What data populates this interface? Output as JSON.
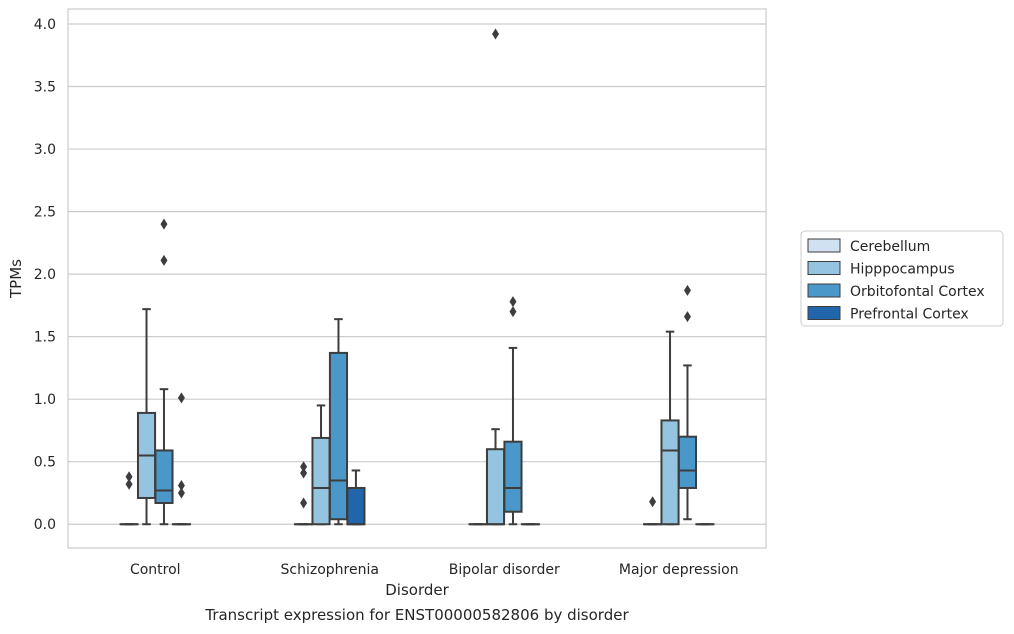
{
  "caption": "Transcript expression for ENST00000582806 by disorder",
  "chart_data": {
    "type": "box",
    "title": "",
    "xlabel": "Disorder",
    "ylabel": "TPMs",
    "ylim": [
      -0.19,
      4.12
    ],
    "yticks": [
      "0.0",
      "0.5",
      "1.0",
      "1.5",
      "2.0",
      "2.5",
      "3.0",
      "3.5",
      "4.0"
    ],
    "grid": true,
    "legend_position": "right",
    "categories": [
      "Control",
      "Schizophrenia",
      "Bipolar disorder",
      "Major depression"
    ],
    "series": [
      {
        "name": "Cerebellum",
        "color": "#d0e1f2",
        "boxes": [
          {
            "q1": 0,
            "median": 0,
            "q3": 0,
            "whisker_low": 0,
            "whisker_high": 0,
            "outliers": [
              0.32,
              0.38
            ]
          },
          {
            "q1": 0,
            "median": 0,
            "q3": 0,
            "whisker_low": 0,
            "whisker_high": 0,
            "outliers": [
              0.17,
              0.41,
              0.46
            ]
          },
          {
            "q1": 0,
            "median": 0,
            "q3": 0,
            "whisker_low": 0,
            "whisker_high": 0,
            "outliers": []
          },
          {
            "q1": 0,
            "median": 0,
            "q3": 0,
            "whisker_low": 0,
            "whisker_high": 0,
            "outliers": [
              0.18
            ]
          }
        ]
      },
      {
        "name": "Hipppocampus",
        "color": "#94c4df",
        "boxes": [
          {
            "q1": 0.21,
            "median": 0.55,
            "q3": 0.89,
            "whisker_low": 0,
            "whisker_high": 1.72,
            "outliers": []
          },
          {
            "q1": 0,
            "median": 0.29,
            "q3": 0.69,
            "whisker_low": 0,
            "whisker_high": 0.95,
            "outliers": []
          },
          {
            "q1": 0,
            "median": 0,
            "q3": 0.6,
            "whisker_low": 0,
            "whisker_high": 0.76,
            "outliers": [
              3.92
            ]
          },
          {
            "q1": 0,
            "median": 0.59,
            "q3": 0.83,
            "whisker_low": 0,
            "whisker_high": 1.54,
            "outliers": []
          }
        ]
      },
      {
        "name": "Orbitofontal Cortex",
        "color": "#4a98c9",
        "boxes": [
          {
            "q1": 0.17,
            "median": 0.27,
            "q3": 0.59,
            "whisker_low": 0,
            "whisker_high": 1.08,
            "outliers": [
              2.11,
              2.4
            ]
          },
          {
            "q1": 0.04,
            "median": 0.35,
            "q3": 1.37,
            "whisker_low": 0,
            "whisker_high": 1.64,
            "outliers": []
          },
          {
            "q1": 0.1,
            "median": 0.29,
            "q3": 0.66,
            "whisker_low": 0,
            "whisker_high": 1.41,
            "outliers": [
              1.7,
              1.78
            ]
          },
          {
            "q1": 0.29,
            "median": 0.43,
            "q3": 0.7,
            "whisker_low": 0.04,
            "whisker_high": 1.27,
            "outliers": [
              1.66,
              1.87
            ]
          }
        ]
      },
      {
        "name": "Prefrontal Cortex",
        "color": "#2165ab",
        "boxes": [
          {
            "q1": 0,
            "median": 0,
            "q3": 0,
            "whisker_low": 0,
            "whisker_high": 0,
            "outliers": [
              0.25,
              0.31,
              1.01
            ]
          },
          {
            "q1": 0,
            "median": 0,
            "q3": 0.29,
            "whisker_low": 0,
            "whisker_high": 0.43,
            "outliers": []
          },
          {
            "q1": 0,
            "median": 0,
            "q3": 0,
            "whisker_low": 0,
            "whisker_high": 0,
            "outliers": []
          },
          {
            "q1": 0,
            "median": 0,
            "q3": 0,
            "whisker_low": 0,
            "whisker_high": 0,
            "outliers": []
          }
        ]
      }
    ]
  }
}
